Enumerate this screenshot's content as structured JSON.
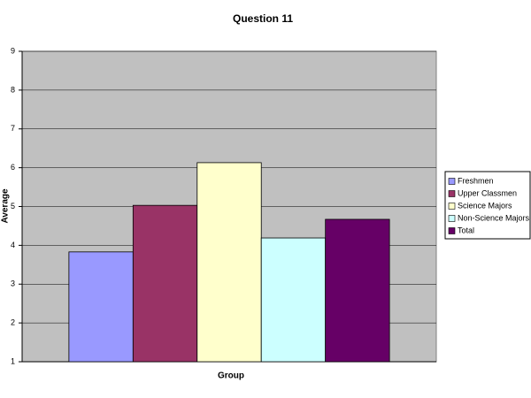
{
  "chart_data": {
    "type": "bar",
    "title": "Question 11",
    "x_label": "Group",
    "y_label": "Average",
    "categories": [
      null
    ],
    "series": [
      {
        "name": "Freshmen",
        "color": "#9999ff",
        "values": [
          3.83
        ]
      },
      {
        "name": "Upper Classmen",
        "color": "#993366",
        "values": [
          5.03
        ]
      },
      {
        "name": "Science Majors",
        "color": "#ffffcc",
        "values": [
          6.13
        ]
      },
      {
        "name": "Non-Science Majors",
        "color": "#ccffff",
        "values": [
          4.19
        ]
      },
      {
        "name": "Total",
        "color": "#660066",
        "values": [
          4.67
        ]
      }
    ],
    "ylim": [
      1,
      9
    ],
    "yticks": [
      1,
      2,
      3,
      4,
      5,
      6,
      7,
      8,
      9
    ],
    "grid": true,
    "legend": "right"
  }
}
